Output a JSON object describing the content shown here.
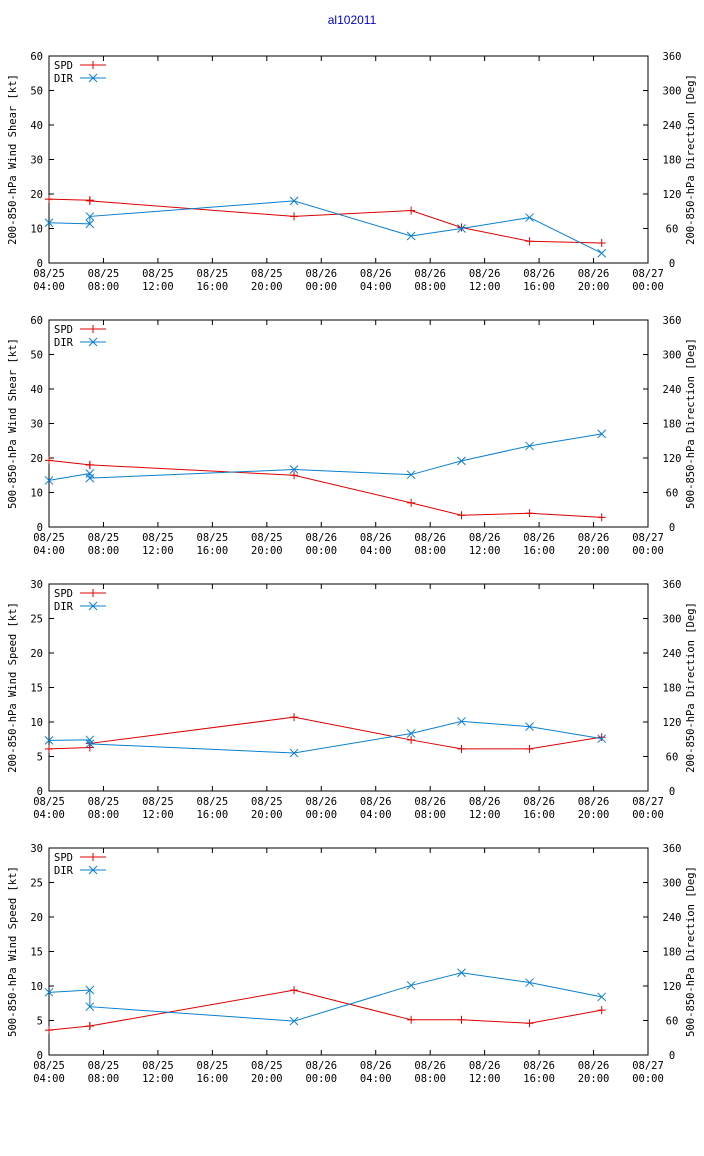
{
  "title": "al102011",
  "colors": {
    "spd": "#dd0000",
    "dir": "#0a7fd0",
    "title": "#0000cc"
  },
  "x_ticks": [
    {
      "date": "08/25",
      "time": "04:00"
    },
    {
      "date": "08/25",
      "time": "08:00"
    },
    {
      "date": "08/25",
      "time": "12:00"
    },
    {
      "date": "08/25",
      "time": "16:00"
    },
    {
      "date": "08/25",
      "time": "20:00"
    },
    {
      "date": "08/26",
      "time": "00:00"
    },
    {
      "date": "08/26",
      "time": "04:00"
    },
    {
      "date": "08/26",
      "time": "08:00"
    },
    {
      "date": "08/26",
      "time": "12:00"
    },
    {
      "date": "08/26",
      "time": "16:00"
    },
    {
      "date": "08/26",
      "time": "20:00"
    },
    {
      "date": "08/27",
      "time": "00:00"
    }
  ],
  "chart_data": [
    {
      "type": "line",
      "ylabel": "200-850-hPa Wind Shear [kt]",
      "y2label": "200-850-hPa Direction [Deg]",
      "xlim": [
        0,
        44
      ],
      "ylim": [
        0,
        60
      ],
      "y_ticks": [
        0,
        10,
        20,
        30,
        40,
        50,
        60
      ],
      "y2lim": [
        0,
        360
      ],
      "y2_ticks": [
        0,
        60,
        120,
        180,
        240,
        300,
        360
      ],
      "series": [
        {
          "name": "SPD",
          "axis": "y1",
          "x": [
            0,
            3,
            3,
            18,
            26.6,
            30.3,
            35.3,
            40.6
          ],
          "y": [
            18.5,
            18.2,
            18.0,
            13.5,
            15.2,
            10.3,
            6.3,
            5.8
          ]
        },
        {
          "name": "DIR",
          "axis": "y2",
          "x": [
            0,
            3,
            3,
            18,
            26.6,
            30.3,
            35.3,
            40.6
          ],
          "y": [
            70,
            68,
            81,
            108,
            47,
            60,
            79,
            17
          ]
        }
      ]
    },
    {
      "type": "line",
      "ylabel": "500-850-hPa Wind Shear [kt]",
      "y2label": "500-850-hPa Direction [Deg]",
      "xlim": [
        0,
        44
      ],
      "ylim": [
        0,
        60
      ],
      "y_ticks": [
        0,
        10,
        20,
        30,
        40,
        50,
        60
      ],
      "y2lim": [
        0,
        360
      ],
      "y2_ticks": [
        0,
        60,
        120,
        180,
        240,
        300,
        360
      ],
      "series": [
        {
          "name": "SPD",
          "axis": "y1",
          "x": [
            0,
            3,
            3,
            18,
            26.6,
            30.3,
            35.3,
            40.6
          ],
          "y": [
            19.3,
            18.0,
            18.0,
            15.0,
            7.0,
            3.4,
            4.0,
            2.8
          ]
        },
        {
          "name": "DIR",
          "axis": "y2",
          "x": [
            0,
            3,
            3,
            18,
            26.6,
            30.3,
            35.3,
            40.6
          ],
          "y": [
            81,
            93,
            85,
            100,
            91,
            115,
            141,
            162
          ]
        }
      ]
    },
    {
      "type": "line",
      "ylabel": "200-850-hPa Wind Speed [kt]",
      "y2label": "200-850-hPa Direction [Deg]",
      "xlim": [
        0,
        44
      ],
      "ylim": [
        0,
        30
      ],
      "y_ticks": [
        0,
        5,
        10,
        15,
        20,
        25,
        30
      ],
      "y2lim": [
        0,
        360
      ],
      "y2_ticks": [
        0,
        60,
        120,
        180,
        240,
        300,
        360
      ],
      "series": [
        {
          "name": "SPD",
          "axis": "y1",
          "x": [
            0,
            3,
            3,
            18,
            26.6,
            30.3,
            35.3,
            40.6
          ],
          "y": [
            6.1,
            6.3,
            6.9,
            10.7,
            7.4,
            6.1,
            6.1,
            7.8
          ]
        },
        {
          "name": "DIR",
          "axis": "y2",
          "x": [
            0,
            3,
            3,
            18,
            26.6,
            30.3,
            35.3,
            40.6
          ],
          "y": [
            88,
            89,
            82,
            66,
            100,
            121,
            112,
            91
          ]
        }
      ]
    },
    {
      "type": "line",
      "ylabel": "500-850-hPa Wind Speed [kt]",
      "y2label": "500-850-hPa Direction [Deg]",
      "xlim": [
        0,
        44
      ],
      "ylim": [
        0,
        30
      ],
      "y_ticks": [
        0,
        5,
        10,
        15,
        20,
        25,
        30
      ],
      "y2lim": [
        0,
        360
      ],
      "y2_ticks": [
        0,
        60,
        120,
        180,
        240,
        300,
        360
      ],
      "series": [
        {
          "name": "SPD",
          "axis": "y1",
          "x": [
            0,
            3,
            3,
            18,
            26.6,
            30.3,
            35.3,
            40.6
          ],
          "y": [
            3.6,
            4.2,
            4.2,
            9.4,
            5.1,
            5.1,
            4.6,
            6.5
          ]
        },
        {
          "name": "DIR",
          "axis": "y2",
          "x": [
            0,
            3,
            3,
            18,
            26.6,
            30.3,
            35.3,
            40.6
          ],
          "y": [
            109,
            113,
            84,
            59,
            121,
            143,
            126,
            101
          ]
        }
      ]
    }
  ]
}
